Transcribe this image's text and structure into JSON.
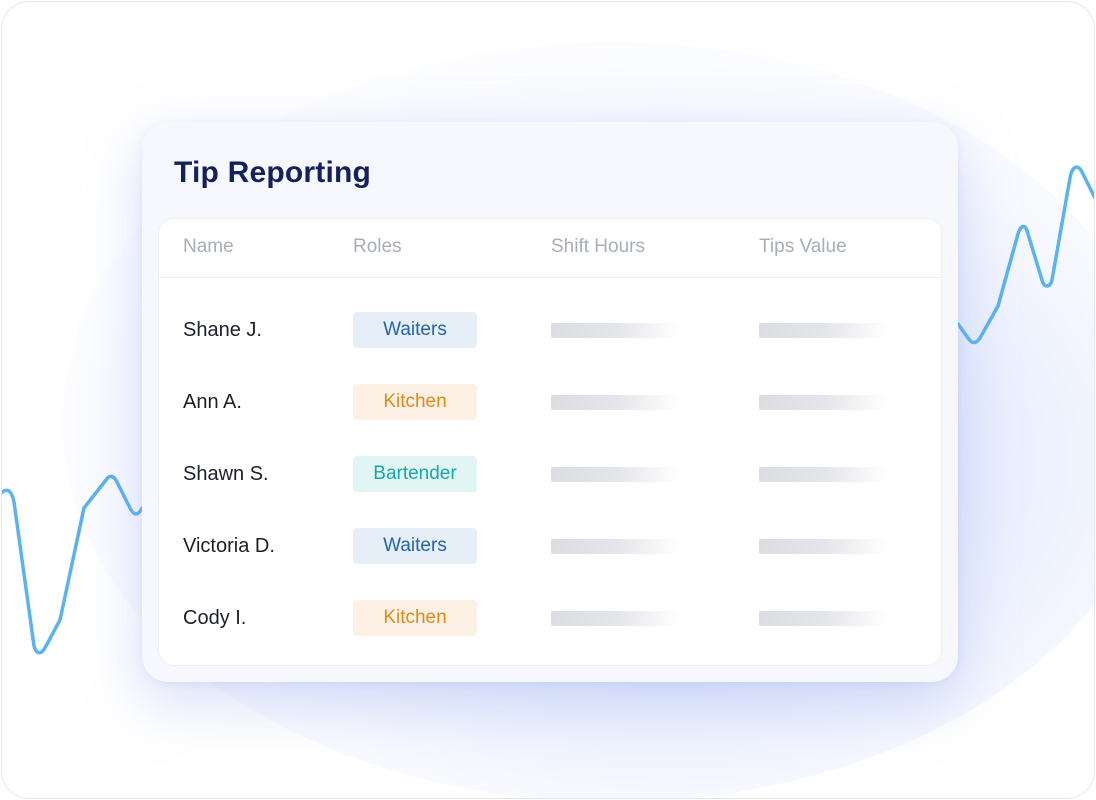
{
  "card": {
    "title": "Tip Reporting"
  },
  "table": {
    "headers": {
      "name": "Name",
      "roles": "Roles",
      "shift_hours": "Shift Hours",
      "tips_value": "Tips Value"
    },
    "rows": [
      {
        "name": "Shane J.",
        "role": "Waiters"
      },
      {
        "name": "Ann A.",
        "role": "Kitchen"
      },
      {
        "name": "Shawn S.",
        "role": "Bartender"
      },
      {
        "name": "Victoria D.",
        "role": "Waiters"
      },
      {
        "name": "Cody I.",
        "role": "Kitchen"
      }
    ]
  },
  "role_colors": {
    "Waiters": {
      "bg": "#e6eef8",
      "fg": "#2663a8"
    },
    "Kitchen": {
      "bg": "#fdf0e4",
      "fg": "#e08a1e"
    },
    "Bartender": {
      "bg": "#e2f5f5",
      "fg": "#1ba6a6"
    }
  },
  "colors": {
    "title": "#14215c",
    "trend_line": "#5ab2ef"
  }
}
